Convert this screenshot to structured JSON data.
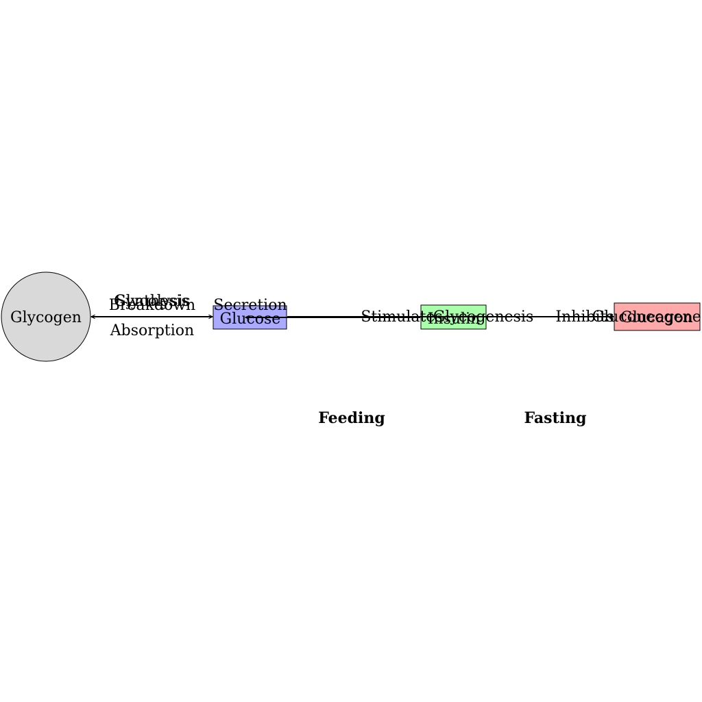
{
  "diagram": {
    "nodes": {
      "glycogen": {
        "label": "Glycogen",
        "fill": "#d9d9d9"
      },
      "glucose": {
        "label": "Glucose",
        "fill": "#aaaaff"
      },
      "insulin": {
        "label": "Insulin",
        "fill": "#aaffaa"
      },
      "glucagon": {
        "label": "Glucagon",
        "fill": "#ffaaaa"
      }
    },
    "edge_labels": {
      "synthesis": "Synthesis",
      "breakdown": "Breakdown",
      "glycolysis": "Glycolysis",
      "absorption": "Absorption",
      "secretion": "Secretion",
      "stimulates": "Stimulates",
      "glycogenesis": "Glycogenesis",
      "inhibits": "Inhibits",
      "gluconeogenesis": "Gluconeogenesis"
    },
    "states": {
      "feeding": "Feeding",
      "fasting": "Fasting"
    }
  }
}
